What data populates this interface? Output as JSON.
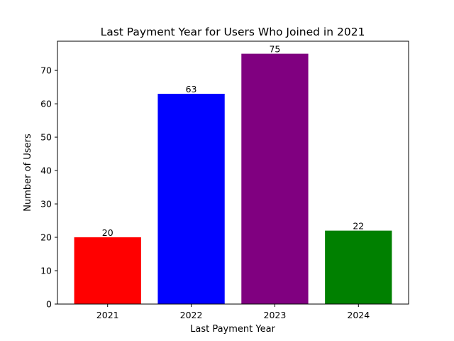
{
  "chart_data": {
    "type": "bar",
    "title": "Last Payment Year for Users Who Joined in 2021",
    "xlabel": "Last Payment Year",
    "ylabel": "Number of Users",
    "categories": [
      "2021",
      "2022",
      "2023",
      "2024"
    ],
    "values": [
      20,
      63,
      75,
      22
    ],
    "colors": [
      "#ff0000",
      "#0000ff",
      "#800080",
      "#008000"
    ],
    "ylim": [
      0,
      78.75
    ],
    "yticks": [
      0,
      10,
      20,
      30,
      40,
      50,
      60,
      70
    ],
    "grid": false,
    "legend": "none",
    "data_labels": true
  }
}
